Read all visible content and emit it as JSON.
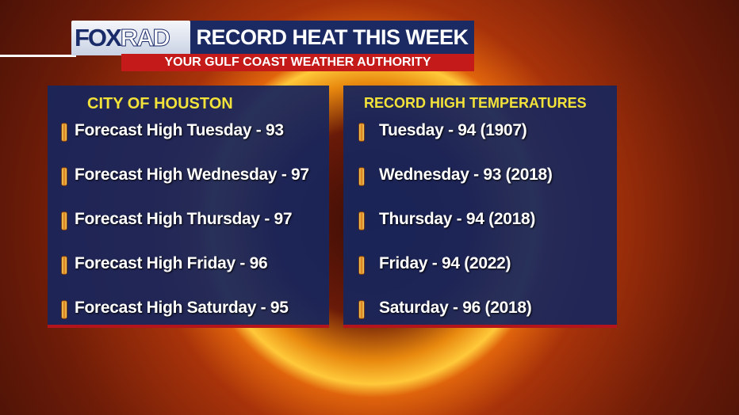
{
  "header": {
    "logo": {
      "part1": "FOX",
      "part2": "RAD"
    },
    "title": "RECORD HEAT THIS WEEK",
    "subtitle": "YOUR GULF COAST WEATHER AUTHORITY"
  },
  "panels": [
    {
      "title": "CITY OF HOUSTON",
      "items": [
        "Forecast High Tuesday - 93",
        "Forecast High Wednesday - 97",
        "Forecast High Thursday - 97",
        "Forecast High Friday - 96",
        "Forecast High Saturday - 95"
      ]
    },
    {
      "title": "RECORD HIGH TEMPERATURES",
      "items": [
        "Tuesday - 94 (1907)",
        "Wednesday - 93 (2018)",
        "Thursday - 94 (2018)",
        "Friday - 94 (2022)",
        "Saturday - 96 (2018)"
      ]
    }
  ]
}
